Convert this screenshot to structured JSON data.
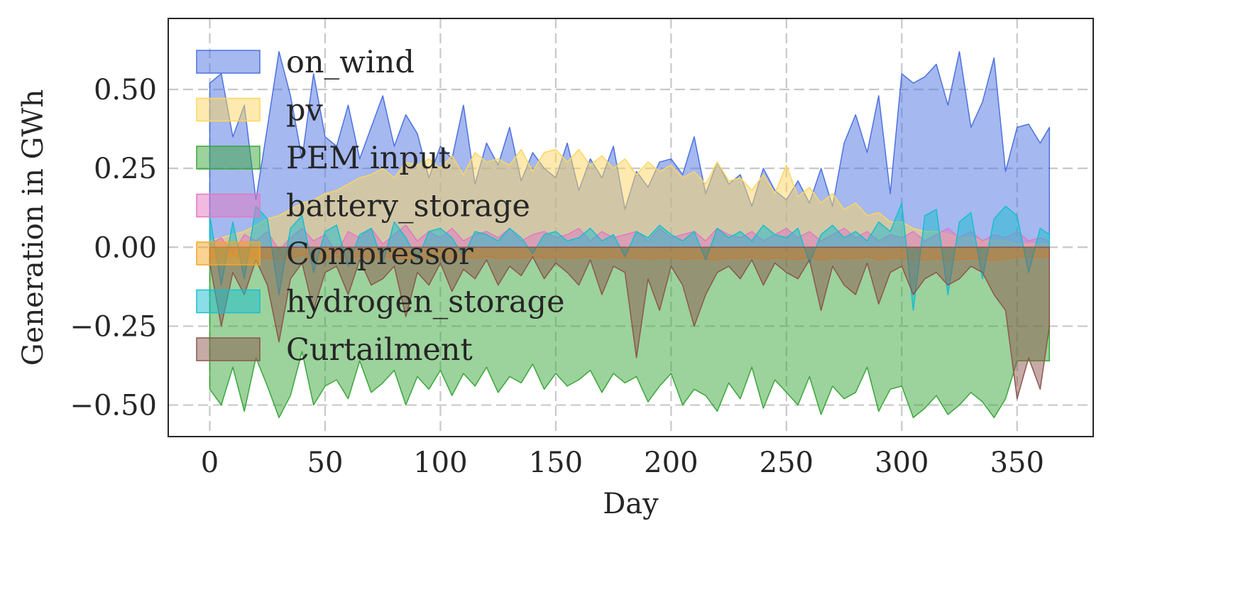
{
  "chart_data": {
    "type": "area",
    "xlabel": "Day",
    "ylabel": "Generation in GWh",
    "xlim": [
      -18,
      383
    ],
    "ylim": [
      -0.6,
      0.725
    ],
    "xticks": [
      0,
      50,
      100,
      150,
      200,
      250,
      300,
      350
    ],
    "yticks": [
      0.5,
      0.25,
      0.0,
      -0.25,
      -0.5
    ],
    "ytick_labels": [
      "0.50",
      "0.25",
      "0.00",
      "−0.25",
      "−0.50"
    ],
    "grid": true,
    "legend_position": "upper-left",
    "x": [
      0,
      5,
      10,
      15,
      20,
      25,
      30,
      35,
      40,
      45,
      50,
      55,
      60,
      65,
      70,
      75,
      80,
      85,
      90,
      95,
      100,
      105,
      110,
      115,
      120,
      125,
      130,
      135,
      140,
      145,
      150,
      155,
      160,
      165,
      170,
      175,
      180,
      185,
      190,
      195,
      200,
      205,
      210,
      215,
      220,
      225,
      230,
      235,
      240,
      245,
      250,
      255,
      260,
      265,
      270,
      275,
      280,
      285,
      290,
      295,
      300,
      305,
      310,
      315,
      320,
      325,
      330,
      335,
      340,
      345,
      350,
      355,
      360,
      364
    ],
    "series": [
      {
        "name": "on_wind",
        "color": "#4c72e0",
        "values": [
          0.52,
          0.55,
          0.35,
          0.45,
          0.15,
          0.38,
          0.62,
          0.48,
          0.28,
          0.55,
          0.35,
          0.32,
          0.45,
          0.28,
          0.38,
          0.48,
          0.32,
          0.42,
          0.36,
          0.22,
          0.32,
          0.28,
          0.45,
          0.2,
          0.33,
          0.26,
          0.38,
          0.21,
          0.3,
          0.25,
          0.22,
          0.33,
          0.18,
          0.28,
          0.22,
          0.32,
          0.12,
          0.24,
          0.19,
          0.27,
          0.28,
          0.23,
          0.35,
          0.17,
          0.27,
          0.2,
          0.23,
          0.13,
          0.25,
          0.18,
          0.15,
          0.21,
          0.14,
          0.25,
          0.13,
          0.33,
          0.42,
          0.3,
          0.48,
          0.17,
          0.55,
          0.52,
          0.54,
          0.58,
          0.45,
          0.62,
          0.38,
          0.46,
          0.6,
          0.24,
          0.38,
          0.39,
          0.33,
          0.38
        ]
      },
      {
        "name": "pv",
        "color": "#fdd660",
        "values": [
          0.02,
          0.03,
          0.04,
          0.05,
          0.07,
          0.09,
          0.1,
          0.12,
          0.14,
          0.15,
          0.17,
          0.18,
          0.2,
          0.22,
          0.23,
          0.25,
          0.22,
          0.27,
          0.26,
          0.28,
          0.25,
          0.29,
          0.23,
          0.3,
          0.27,
          0.28,
          0.26,
          0.31,
          0.24,
          0.3,
          0.31,
          0.27,
          0.31,
          0.26,
          0.29,
          0.25,
          0.28,
          0.23,
          0.27,
          0.24,
          0.26,
          0.22,
          0.24,
          0.2,
          0.27,
          0.21,
          0.22,
          0.18,
          0.23,
          0.17,
          0.26,
          0.16,
          0.19,
          0.14,
          0.17,
          0.12,
          0.14,
          0.1,
          0.11,
          0.08,
          0.08,
          0.06,
          0.05,
          0.05,
          0.04,
          0.03,
          0.03,
          0.02,
          0.02,
          0.02,
          0.01,
          0.01,
          0.01,
          0.01
        ]
      },
      {
        "name": "PEM input",
        "color": "#3aa63a",
        "values": [
          -0.45,
          -0.5,
          -0.38,
          -0.52,
          -0.35,
          -0.44,
          -0.54,
          -0.47,
          -0.33,
          -0.5,
          -0.44,
          -0.42,
          -0.48,
          -0.36,
          -0.46,
          -0.43,
          -0.39,
          -0.5,
          -0.41,
          -0.45,
          -0.39,
          -0.47,
          -0.4,
          -0.44,
          -0.38,
          -0.46,
          -0.41,
          -0.43,
          -0.37,
          -0.45,
          -0.4,
          -0.44,
          -0.42,
          -0.39,
          -0.46,
          -0.4,
          -0.43,
          -0.41,
          -0.49,
          -0.44,
          -0.4,
          -0.5,
          -0.45,
          -0.47,
          -0.52,
          -0.43,
          -0.48,
          -0.38,
          -0.51,
          -0.42,
          -0.46,
          -0.5,
          -0.41,
          -0.53,
          -0.44,
          -0.48,
          -0.46,
          -0.38,
          -0.52,
          -0.45,
          -0.44,
          -0.54,
          -0.51,
          -0.47,
          -0.53,
          -0.5,
          -0.46,
          -0.49,
          -0.54,
          -0.48,
          -0.36,
          -0.36,
          -0.36,
          -0.36
        ]
      },
      {
        "name": "battery_storage",
        "color": "#e377c2",
        "values": [
          0.01,
          0.03,
          -0.02,
          0.04,
          0.02,
          0.05,
          -0.01,
          0.03,
          0.06,
          0.02,
          0.04,
          -0.02,
          0.05,
          0.03,
          0.06,
          0.01,
          0.04,
          0.07,
          0.02,
          0.05,
          0.03,
          0.06,
          0.02,
          0.04,
          0.05,
          0.03,
          0.06,
          0.02,
          0.04,
          0.05,
          0.03,
          0.04,
          0.06,
          0.02,
          0.05,
          0.03,
          0.04,
          0.05,
          0.02,
          0.06,
          0.03,
          0.04,
          0.05,
          0.02,
          0.06,
          0.04,
          0.03,
          0.05,
          0.02,
          0.04,
          0.06,
          0.03,
          0.05,
          0.02,
          0.04,
          0.06,
          0.03,
          0.05,
          0.02,
          0.04,
          0.03,
          0.05,
          0.02,
          0.04,
          0.06,
          0.03,
          0.05,
          0.02,
          0.04,
          0.03,
          0.05,
          0.02,
          0.03,
          0.02
        ]
      },
      {
        "name": "Compressor",
        "color": "#f5a623",
        "values": [
          -0.03,
          -0.035,
          -0.025,
          -0.04,
          -0.03,
          -0.035,
          -0.04,
          -0.035,
          -0.025,
          -0.04,
          -0.035,
          -0.03,
          -0.038,
          -0.028,
          -0.036,
          -0.033,
          -0.03,
          -0.04,
          -0.032,
          -0.035,
          -0.03,
          -0.037,
          -0.031,
          -0.034,
          -0.029,
          -0.036,
          -0.032,
          -0.034,
          -0.029,
          -0.035,
          -0.031,
          -0.034,
          -0.033,
          -0.03,
          -0.036,
          -0.031,
          -0.034,
          -0.032,
          -0.038,
          -0.034,
          -0.031,
          -0.039,
          -0.035,
          -0.037,
          -0.04,
          -0.034,
          -0.037,
          -0.03,
          -0.039,
          -0.033,
          -0.036,
          -0.039,
          -0.032,
          -0.041,
          -0.034,
          -0.037,
          -0.036,
          -0.03,
          -0.04,
          -0.035,
          -0.034,
          -0.042,
          -0.039,
          -0.036,
          -0.041,
          -0.039,
          -0.036,
          -0.038,
          -0.042,
          -0.037,
          -0.03,
          -0.03,
          -0.03,
          -0.03
        ]
      },
      {
        "name": "hydrogen_storage",
        "color": "#17becf",
        "values": [
          0.1,
          -0.12,
          0.08,
          -0.1,
          0.13,
          0.09,
          -0.15,
          0.06,
          0.1,
          -0.08,
          0.05,
          0.07,
          -0.06,
          0.04,
          0.06,
          -0.05,
          0.08,
          0.03,
          -0.04,
          0.05,
          0.06,
          0.03,
          -0.03,
          0.05,
          0.04,
          0.02,
          0.06,
          0.03,
          -0.02,
          0.04,
          0.05,
          0.02,
          0.03,
          0.06,
          0.02,
          0.04,
          -0.03,
          0.05,
          0.03,
          0.07,
          0.04,
          0.02,
          0.05,
          -0.04,
          0.06,
          0.03,
          0.05,
          0.02,
          0.07,
          0.04,
          0.03,
          0.06,
          -0.05,
          0.04,
          0.07,
          0.03,
          0.05,
          0.02,
          0.08,
          0.05,
          0.14,
          -0.2,
          0.1,
          0.12,
          -0.15,
          0.08,
          0.11,
          -0.1,
          0.09,
          0.13,
          0.1,
          -0.08,
          0.06,
          0.04
        ]
      },
      {
        "name": "Curtailment",
        "color": "#8c564b",
        "values": [
          -0.05,
          -0.25,
          -0.08,
          -0.15,
          -0.04,
          -0.12,
          -0.3,
          -0.1,
          -0.05,
          -0.2,
          -0.08,
          -0.06,
          -0.15,
          -0.04,
          -0.12,
          -0.1,
          -0.06,
          -0.22,
          -0.08,
          -0.12,
          -0.05,
          -0.14,
          -0.07,
          -0.1,
          -0.04,
          -0.12,
          -0.06,
          -0.09,
          -0.03,
          -0.1,
          -0.05,
          -0.08,
          -0.12,
          -0.04,
          -0.15,
          -0.06,
          -0.08,
          -0.35,
          -0.1,
          -0.2,
          -0.06,
          -0.12,
          -0.25,
          -0.15,
          -0.08,
          -0.06,
          -0.1,
          -0.04,
          -0.12,
          -0.05,
          -0.08,
          -0.1,
          -0.04,
          -0.2,
          -0.06,
          -0.12,
          -0.15,
          -0.05,
          -0.18,
          -0.08,
          -0.06,
          -0.15,
          -0.1,
          -0.08,
          -0.12,
          -0.1,
          -0.06,
          -0.08,
          -0.15,
          -0.2,
          -0.48,
          -0.35,
          -0.45,
          -0.25
        ]
      }
    ]
  }
}
